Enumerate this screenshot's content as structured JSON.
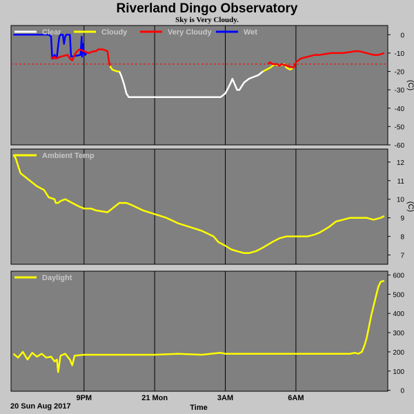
{
  "chart_data": [
    {
      "type": "line",
      "title": "Riverland Dingo Observatory",
      "subtitle": "Sky is Very Cloudy.",
      "ylabel": "(C)",
      "ylim": [
        -60,
        5
      ],
      "yticks": [
        0,
        -10,
        -20,
        -30,
        -40,
        -50,
        -60
      ],
      "threshold": -16,
      "threshold_color": "#ff0000",
      "legend": [
        {
          "name": "Clear",
          "color": "#ffffff"
        },
        {
          "name": "Cloudy",
          "color": "#ffff00"
        },
        {
          "name": "Very Cloudy",
          "color": "#ff0000"
        },
        {
          "name": "Wet",
          "color": "#0000ff"
        }
      ],
      "series": [
        {
          "name": "Wet",
          "color": "#0000ff",
          "x": [
            18.0,
            18.5,
            19.0,
            19.5,
            19.6,
            19.65,
            19.75,
            19.8,
            19.85,
            19.9,
            19.95,
            20.0,
            20.1,
            20.15,
            20.2,
            20.25,
            20.3,
            20.35,
            20.4,
            20.45,
            20.85,
            20.9,
            20.92,
            20.95,
            21.0,
            21.05,
            21.1
          ],
          "y": [
            0,
            0,
            0,
            0,
            -1,
            -13,
            -11,
            -12,
            -12,
            -6,
            -1,
            0,
            0,
            -5,
            -1,
            0,
            0,
            0,
            0,
            -12,
            -11,
            -1,
            -12,
            -5,
            -10,
            -11,
            -10
          ]
        },
        {
          "name": "Very Cloudy",
          "color": "#ff0000",
          "x": [
            19.6,
            19.7,
            19.75,
            19.8,
            20.0,
            20.3,
            20.4,
            20.5,
            20.6,
            20.7,
            20.8,
            21.2,
            21.4,
            21.5,
            21.6,
            21.8,
            22.0,
            22.05,
            22.1
          ],
          "y": [
            -12,
            -13,
            -12,
            -13,
            -12,
            -11,
            -13,
            -14,
            -11,
            -9,
            -8,
            -10,
            -9,
            -9,
            -8,
            -8,
            -9,
            -14,
            -17
          ]
        },
        {
          "name": "Cloudy",
          "color": "#ffff00",
          "x": [
            22.1,
            22.2,
            22.4,
            22.5
          ],
          "y": [
            -17,
            -19,
            -20,
            -20
          ]
        },
        {
          "name": "Clear",
          "color": "#ffffff",
          "x": [
            22.5,
            22.6,
            22.7,
            22.8,
            22.9,
            23.0,
            23.5,
            24.0,
            24.5,
            25.0,
            25.5,
            26.0,
            26.5,
            26.8,
            27.0,
            27.2,
            27.3,
            27.4,
            27.5,
            27.6,
            27.7,
            27.8,
            28.0,
            28.2,
            28.4,
            28.6
          ],
          "y": [
            -20,
            -23,
            -27,
            -32,
            -34,
            -34,
            -34,
            -34,
            -34,
            -34,
            -34,
            -34,
            -34,
            -34,
            -32,
            -27,
            -24,
            -27,
            -30,
            -30,
            -28,
            -26,
            -24,
            -23,
            -22,
            -20
          ]
        },
        {
          "name": "Cloudy",
          "color": "#ffff00",
          "x": [
            28.6,
            28.75,
            28.9,
            29.0,
            29.1,
            29.3,
            29.5,
            29.6,
            29.75,
            29.9
          ],
          "y": [
            -20,
            -19,
            -18,
            -17,
            -16,
            -17,
            -16,
            -18,
            -19,
            -18
          ]
        },
        {
          "name": "Very Cloudy",
          "color": "#ff0000",
          "x": [
            28.8,
            28.9,
            29.0,
            29.2,
            29.3,
            29.4,
            29.9,
            30.0,
            30.2,
            30.5,
            30.8,
            31.0,
            31.5,
            32.0,
            32.5,
            32.7,
            33.0,
            33.3,
            33.5,
            33.75
          ],
          "y": [
            -16,
            -15,
            -16,
            -16,
            -17,
            -16,
            -18,
            -15,
            -13,
            -12,
            -11,
            -11,
            -10,
            -10,
            -9,
            -9,
            -10,
            -11,
            -11,
            -10
          ]
        }
      ]
    },
    {
      "type": "line",
      "ylabel": "(C)",
      "ylim": [
        6.5,
        12.7
      ],
      "yticks": [
        7,
        8,
        9,
        10,
        11,
        12
      ],
      "legend": [
        {
          "name": "Ambient Temp",
          "color": "#ffff00"
        }
      ],
      "series": [
        {
          "name": "Ambient Temp",
          "color": "#ffff00",
          "x": [
            18.0,
            18.1,
            18.2,
            18.3,
            18.5,
            18.7,
            19.0,
            19.3,
            19.5,
            19.75,
            19.8,
            19.9,
            20.0,
            20.2,
            20.5,
            20.8,
            21.0,
            21.3,
            21.5,
            22.0,
            22.5,
            22.8,
            23.0,
            23.5,
            24.0,
            24.5,
            25.0,
            25.5,
            26.0,
            26.5,
            26.7,
            27.0,
            27.25,
            27.5,
            27.8,
            28.0,
            28.3,
            28.6,
            29.0,
            29.3,
            29.6,
            30.0,
            30.3,
            30.5,
            30.8,
            31.0,
            31.4,
            31.7,
            32.0,
            32.3,
            32.7,
            33.0,
            33.3,
            33.6,
            33.75
          ],
          "y": [
            12.4,
            12.2,
            11.8,
            11.4,
            11.2,
            11.0,
            10.7,
            10.5,
            10.1,
            10.0,
            9.8,
            9.8,
            9.9,
            10.0,
            9.8,
            9.6,
            9.5,
            9.5,
            9.4,
            9.3,
            9.8,
            9.8,
            9.7,
            9.4,
            9.2,
            9.0,
            8.7,
            8.5,
            8.3,
            8.0,
            7.7,
            7.5,
            7.3,
            7.2,
            7.1,
            7.1,
            7.2,
            7.4,
            7.7,
            7.9,
            8.0,
            8.0,
            8.0,
            8.0,
            8.1,
            8.2,
            8.5,
            8.8,
            8.9,
            9.0,
            9.0,
            9.0,
            8.9,
            9.0,
            9.1
          ]
        }
      ]
    },
    {
      "type": "line",
      "ylim": [
        -5,
        620
      ],
      "yticks": [
        0,
        100,
        200,
        300,
        400,
        500,
        600
      ],
      "legend": [
        {
          "name": "Daylight",
          "color": "#ffff00"
        }
      ],
      "series": [
        {
          "name": "Daylight",
          "color": "#ffff00",
          "x": [
            18.0,
            18.2,
            18.4,
            18.6,
            18.8,
            19.0,
            19.2,
            19.4,
            19.6,
            19.75,
            19.85,
            19.9,
            20.0,
            20.2,
            20.4,
            20.5,
            20.6,
            21.0,
            22.0,
            23.0,
            24.0,
            25.0,
            26.0,
            26.8,
            27.0,
            27.5,
            28.0,
            29.0,
            30.0,
            31.0,
            32.0,
            32.3,
            32.5,
            32.65,
            32.8,
            32.9,
            33.0,
            33.1,
            33.2,
            33.3,
            33.4,
            33.5,
            33.6,
            33.75
          ],
          "y": [
            190,
            170,
            200,
            160,
            195,
            175,
            190,
            170,
            175,
            150,
            160,
            95,
            180,
            190,
            160,
            130,
            180,
            185,
            185,
            185,
            185,
            190,
            185,
            195,
            190,
            190,
            190,
            190,
            190,
            190,
            190,
            190,
            195,
            190,
            200,
            230,
            270,
            330,
            390,
            440,
            490,
            540,
            565,
            570
          ]
        }
      ]
    }
  ],
  "x_axis": {
    "xlim": [
      17.9,
      33.9
    ],
    "ticks": [
      {
        "x": 21,
        "label": "9PM"
      },
      {
        "x": 24,
        "label": "21 Mon"
      },
      {
        "x": 27,
        "label": "3AM"
      },
      {
        "x": 30,
        "label": "6AM"
      }
    ],
    "date_label": "20 Sun Aug 2017",
    "xlabel": "Time"
  },
  "colors": {
    "panel_bg": "#808080",
    "page_bg": "#c8c8c8",
    "grid": "#000000"
  }
}
